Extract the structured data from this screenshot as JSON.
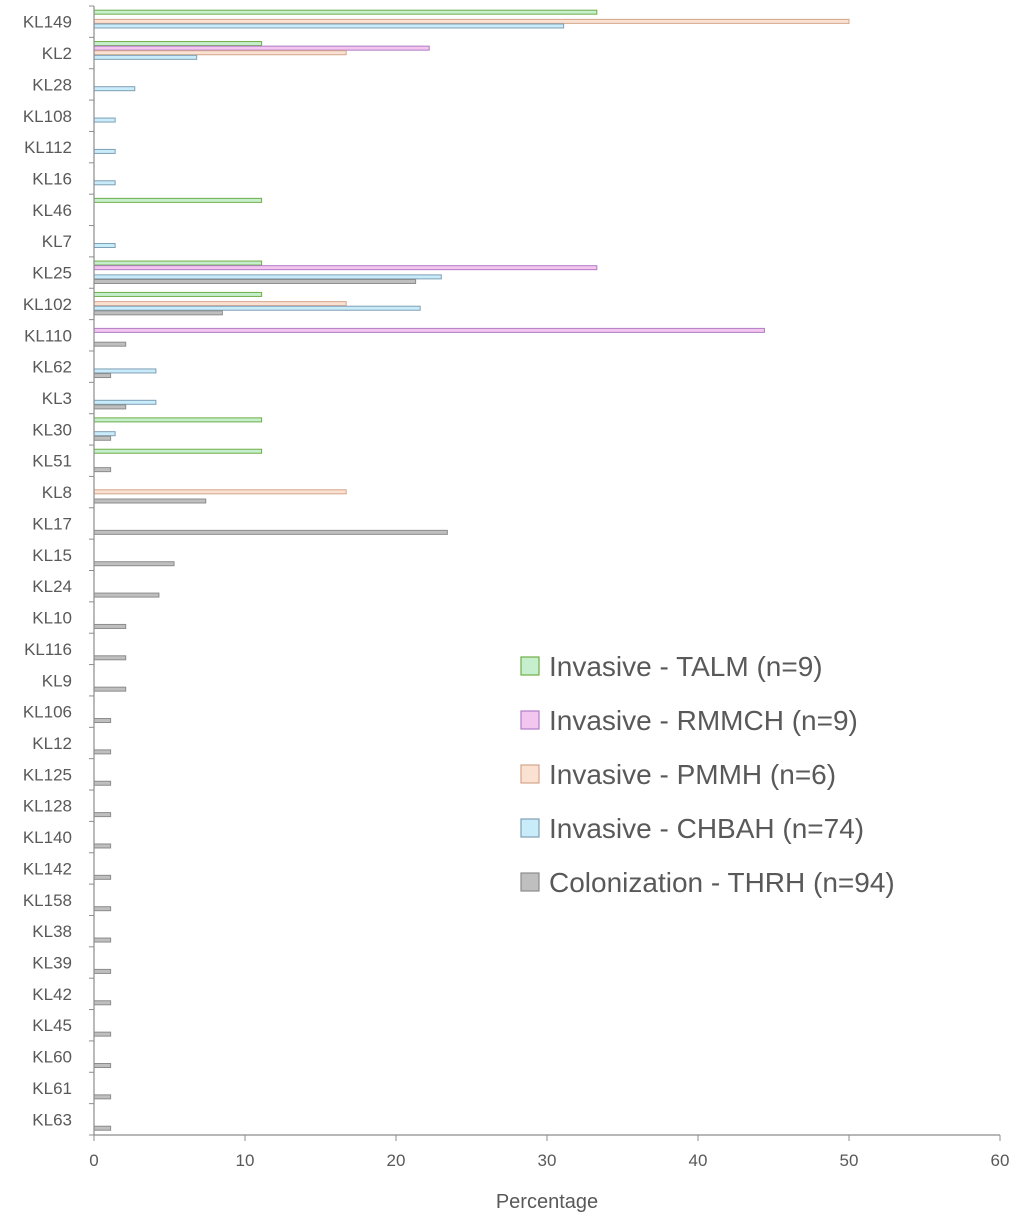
{
  "chart_data": {
    "type": "bar",
    "orientation": "horizontal",
    "title": "",
    "xlabel": "Percentage",
    "ylabel": "",
    "xlim": [
      0,
      60
    ],
    "xticks": [
      "0",
      "10",
      "20",
      "30",
      "40",
      "50",
      "60"
    ],
    "grid": false,
    "legend_position": "right",
    "categories": [
      "KL149",
      "KL2",
      "KL28",
      "KL108",
      "KL112",
      "KL16",
      "KL46",
      "KL7",
      "KL25",
      "KL102",
      "KL110",
      "KL62",
      "KL3",
      "KL30",
      "KL51",
      "KL8",
      "KL17",
      "KL15",
      "KL24",
      "KL10",
      "KL116",
      "KL9",
      "KL106",
      "KL12",
      "KL125",
      "KL128",
      "KL140",
      "KL142",
      "KL158",
      "KL38",
      "KL39",
      "KL42",
      "KL45",
      "KL60",
      "KL61",
      "KL63"
    ],
    "series": [
      {
        "name": "Invasive - TALM (n=9)",
        "fill": "#c6efce",
        "stroke": "#70ad47",
        "values": [
          33.3,
          11.1,
          0,
          0,
          0,
          0,
          11.1,
          0,
          11.1,
          11.1,
          0,
          0,
          0,
          11.1,
          11.1,
          0,
          0,
          0,
          0,
          0,
          0,
          0,
          0,
          0,
          0,
          0,
          0,
          0,
          0,
          0,
          0,
          0,
          0,
          0,
          0,
          0
        ]
      },
      {
        "name": "Invasive - RMMCH (n=9)",
        "fill": "#f3c6f0",
        "stroke": "#b07cc6",
        "values": [
          0,
          22.2,
          0,
          0,
          0,
          0,
          0,
          0,
          33.3,
          0,
          44.4,
          0,
          0,
          0,
          0,
          0,
          0,
          0,
          0,
          0,
          0,
          0,
          0,
          0,
          0,
          0,
          0,
          0,
          0,
          0,
          0,
          0,
          0,
          0,
          0,
          0
        ]
      },
      {
        "name": "Invasive - PMMH (n=6)",
        "fill": "#fbe1d2",
        "stroke": "#d4a58a",
        "values": [
          50,
          16.7,
          0,
          0,
          0,
          0,
          0,
          0,
          0,
          16.7,
          0,
          0,
          0,
          0,
          0,
          16.7,
          0,
          0,
          0,
          0,
          0,
          0,
          0,
          0,
          0,
          0,
          0,
          0,
          0,
          0,
          0,
          0,
          0,
          0,
          0,
          0
        ]
      },
      {
        "name": "Invasive - CHBAH (n=74)",
        "fill": "#c9ecfa",
        "stroke": "#7f9fb5",
        "values": [
          31.1,
          6.8,
          2.7,
          1.4,
          1.4,
          1.4,
          0,
          1.4,
          23,
          21.6,
          0,
          4.1,
          4.1,
          1.4,
          0,
          0,
          0,
          0,
          0,
          0,
          0,
          0,
          0,
          0,
          0,
          0,
          0,
          0,
          0,
          0,
          0,
          0,
          0,
          0,
          0,
          0
        ]
      },
      {
        "name": "Colonization - THRH (n=94)",
        "fill": "#bfbfbf",
        "stroke": "#8c8c8c",
        "values": [
          0,
          0,
          0,
          0,
          0,
          0,
          0,
          0,
          21.3,
          8.5,
          2.1,
          1.1,
          2.1,
          1.1,
          1.1,
          7.4,
          23.4,
          5.3,
          4.3,
          2.1,
          2.1,
          2.1,
          1.1,
          1.1,
          1.1,
          1.1,
          1.1,
          1.1,
          1.1,
          1.1,
          1.1,
          1.1,
          1.1,
          1.1,
          1.1,
          1.1
        ]
      }
    ]
  }
}
